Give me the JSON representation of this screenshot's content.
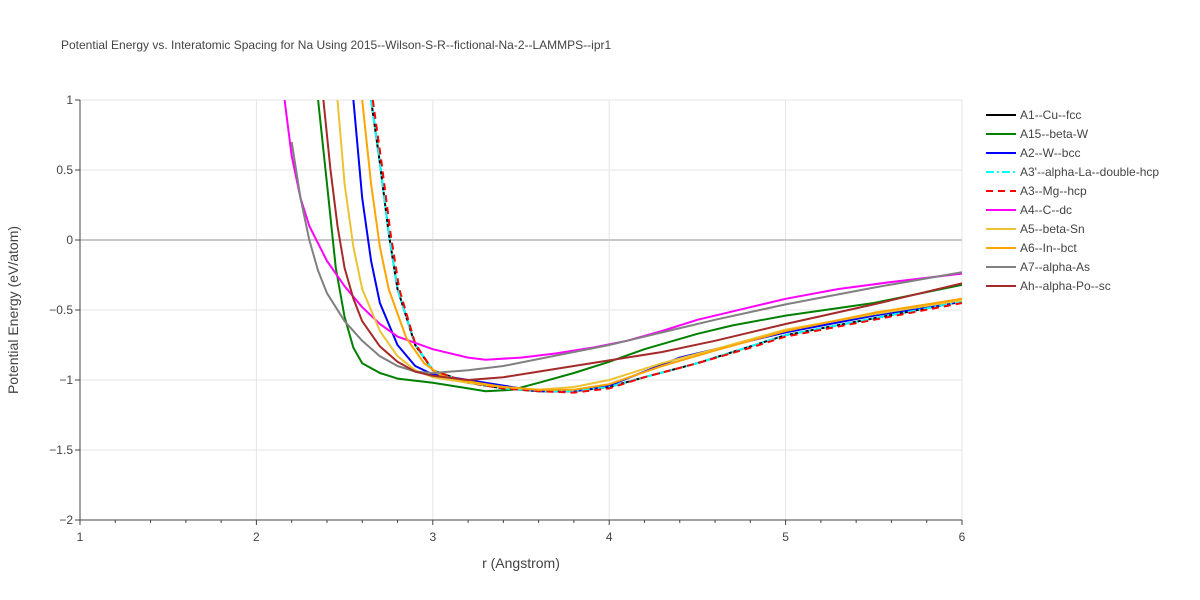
{
  "chart_data": {
    "type": "line",
    "title": "Potential Energy vs. Interatomic Spacing for Na Using 2015--Wilson-S-R--fictional-Na-2--LAMMPS--ipr1",
    "xlabel": "r (Angstrom)",
    "ylabel": "Potential Energy (eV/atom)",
    "xlim": [
      1,
      6
    ],
    "ylim": [
      -2,
      1
    ],
    "x_ticks": [
      "1",
      "2",
      "3",
      "4",
      "5",
      "6"
    ],
    "y_ticks": [
      "−2",
      "−1.5",
      "−1",
      "−0.5",
      "0",
      "0.5",
      "1"
    ],
    "grid": true,
    "legend_position": "right",
    "series": [
      {
        "name": "A1--Cu--fcc",
        "color": "#000000",
        "dash": "solid",
        "points": [
          [
            2.65,
            1.0
          ],
          [
            2.7,
            0.55
          ],
          [
            2.75,
            0.05
          ],
          [
            2.8,
            -0.35
          ],
          [
            2.9,
            -0.75
          ],
          [
            3.0,
            -0.93
          ],
          [
            3.2,
            -1.02
          ],
          [
            3.4,
            -1.06
          ],
          [
            3.6,
            -1.08
          ],
          [
            3.8,
            -1.08
          ],
          [
            4.0,
            -1.05
          ],
          [
            4.2,
            -0.98
          ],
          [
            4.5,
            -0.88
          ],
          [
            4.8,
            -0.76
          ],
          [
            5.0,
            -0.68
          ],
          [
            5.5,
            -0.56
          ],
          [
            6.0,
            -0.44
          ]
        ]
      },
      {
        "name": "A15--beta-W",
        "color": "#008000",
        "dash": "solid",
        "points": [
          [
            2.35,
            1.0
          ],
          [
            2.4,
            0.4
          ],
          [
            2.45,
            -0.2
          ],
          [
            2.5,
            -0.55
          ],
          [
            2.55,
            -0.77
          ],
          [
            2.6,
            -0.88
          ],
          [
            2.7,
            -0.95
          ],
          [
            2.8,
            -0.99
          ],
          [
            3.0,
            -1.02
          ],
          [
            3.2,
            -1.06
          ],
          [
            3.3,
            -1.08
          ],
          [
            3.45,
            -1.07
          ],
          [
            3.6,
            -1.02
          ],
          [
            3.8,
            -0.95
          ],
          [
            4.0,
            -0.87
          ],
          [
            4.2,
            -0.78
          ],
          [
            4.5,
            -0.67
          ],
          [
            4.7,
            -0.61
          ],
          [
            5.0,
            -0.54
          ],
          [
            5.5,
            -0.45
          ],
          [
            6.0,
            -0.32
          ]
        ]
      },
      {
        "name": "A2--W--bcc",
        "color": "#0000ff",
        "dash": "solid",
        "points": [
          [
            2.55,
            1.0
          ],
          [
            2.6,
            0.3
          ],
          [
            2.65,
            -0.15
          ],
          [
            2.7,
            -0.45
          ],
          [
            2.8,
            -0.75
          ],
          [
            2.9,
            -0.9
          ],
          [
            3.0,
            -0.96
          ],
          [
            3.2,
            -1.0
          ],
          [
            3.4,
            -1.04
          ],
          [
            3.6,
            -1.08
          ],
          [
            3.8,
            -1.08
          ],
          [
            4.0,
            -1.04
          ],
          [
            4.2,
            -0.94
          ],
          [
            4.4,
            -0.84
          ],
          [
            4.7,
            -0.75
          ],
          [
            5.0,
            -0.66
          ],
          [
            5.5,
            -0.54
          ],
          [
            6.0,
            -0.44
          ]
        ]
      },
      {
        "name": "A3'--alpha-La--double-hcp",
        "color": "#00ffff",
        "dash": "8,3,2,3",
        "points": [
          [
            2.65,
            1.0
          ],
          [
            2.7,
            0.55
          ],
          [
            2.75,
            0.05
          ],
          [
            2.8,
            -0.35
          ],
          [
            2.9,
            -0.75
          ],
          [
            3.0,
            -0.93
          ],
          [
            3.2,
            -1.02
          ],
          [
            3.4,
            -1.06
          ],
          [
            3.6,
            -1.08
          ],
          [
            3.8,
            -1.08
          ],
          [
            4.0,
            -1.05
          ],
          [
            4.2,
            -0.98
          ],
          [
            4.5,
            -0.88
          ],
          [
            4.8,
            -0.76
          ],
          [
            5.0,
            -0.68
          ],
          [
            5.5,
            -0.56
          ],
          [
            6.0,
            -0.44
          ]
        ]
      },
      {
        "name": "A3--Mg--hcp",
        "color": "#ff0000",
        "dash": "7,5",
        "points": [
          [
            2.66,
            1.0
          ],
          [
            2.71,
            0.55
          ],
          [
            2.76,
            0.05
          ],
          [
            2.81,
            -0.35
          ],
          [
            2.9,
            -0.74
          ],
          [
            3.0,
            -0.93
          ],
          [
            3.2,
            -1.02
          ],
          [
            3.4,
            -1.06
          ],
          [
            3.6,
            -1.08
          ],
          [
            3.8,
            -1.09
          ],
          [
            4.0,
            -1.06
          ],
          [
            4.2,
            -0.98
          ],
          [
            4.5,
            -0.88
          ],
          [
            4.8,
            -0.77
          ],
          [
            5.0,
            -0.69
          ],
          [
            5.5,
            -0.57
          ],
          [
            6.0,
            -0.45
          ]
        ]
      },
      {
        "name": "A4--C--dc",
        "color": "#ff00ff",
        "dash": "solid",
        "points": [
          [
            2.16,
            1.0
          ],
          [
            2.2,
            0.6
          ],
          [
            2.25,
            0.3
          ],
          [
            2.3,
            0.1
          ],
          [
            2.4,
            -0.15
          ],
          [
            2.5,
            -0.33
          ],
          [
            2.6,
            -0.48
          ],
          [
            2.7,
            -0.6
          ],
          [
            2.8,
            -0.69
          ],
          [
            3.0,
            -0.78
          ],
          [
            3.2,
            -0.84
          ],
          [
            3.3,
            -0.855
          ],
          [
            3.5,
            -0.84
          ],
          [
            3.7,
            -0.81
          ],
          [
            3.9,
            -0.77
          ],
          [
            4.1,
            -0.72
          ],
          [
            4.3,
            -0.65
          ],
          [
            4.5,
            -0.57
          ],
          [
            4.8,
            -0.48
          ],
          [
            5.0,
            -0.42
          ],
          [
            5.3,
            -0.35
          ],
          [
            5.6,
            -0.3
          ],
          [
            6.0,
            -0.24
          ]
        ]
      },
      {
        "name": "A5--beta-Sn",
        "color": "#ebc334",
        "dash": "solid",
        "points": [
          [
            2.46,
            1.0
          ],
          [
            2.5,
            0.4
          ],
          [
            2.55,
            -0.05
          ],
          [
            2.6,
            -0.35
          ],
          [
            2.7,
            -0.65
          ],
          [
            2.8,
            -0.83
          ],
          [
            2.9,
            -0.93
          ],
          [
            3.0,
            -0.98
          ],
          [
            3.2,
            -1.02
          ],
          [
            3.4,
            -1.05
          ],
          [
            3.6,
            -1.07
          ],
          [
            3.8,
            -1.05
          ],
          [
            4.0,
            -1.0
          ],
          [
            4.3,
            -0.88
          ],
          [
            4.6,
            -0.78
          ],
          [
            5.0,
            -0.64
          ],
          [
            5.5,
            -0.53
          ],
          [
            6.0,
            -0.43
          ]
        ]
      },
      {
        "name": "A6--In--bct",
        "color": "#ffa500",
        "dash": "solid",
        "points": [
          [
            2.6,
            1.0
          ],
          [
            2.65,
            0.4
          ],
          [
            2.7,
            -0.05
          ],
          [
            2.75,
            -0.35
          ],
          [
            2.85,
            -0.7
          ],
          [
            2.95,
            -0.88
          ],
          [
            3.05,
            -0.97
          ],
          [
            3.2,
            -1.01
          ],
          [
            3.4,
            -1.05
          ],
          [
            3.6,
            -1.07
          ],
          [
            3.8,
            -1.07
          ],
          [
            4.0,
            -1.03
          ],
          [
            4.3,
            -0.9
          ],
          [
            4.6,
            -0.79
          ],
          [
            5.0,
            -0.65
          ],
          [
            5.5,
            -0.52
          ],
          [
            6.0,
            -0.42
          ]
        ]
      },
      {
        "name": "A7--alpha-As",
        "color": "#808080",
        "dash": "solid",
        "points": [
          [
            2.2,
            0.7
          ],
          [
            2.25,
            0.3
          ],
          [
            2.3,
            0.0
          ],
          [
            2.35,
            -0.22
          ],
          [
            2.4,
            -0.38
          ],
          [
            2.5,
            -0.58
          ],
          [
            2.6,
            -0.72
          ],
          [
            2.7,
            -0.83
          ],
          [
            2.8,
            -0.9
          ],
          [
            2.9,
            -0.94
          ],
          [
            3.0,
            -0.95
          ],
          [
            3.2,
            -0.93
          ],
          [
            3.4,
            -0.9
          ],
          [
            3.6,
            -0.85
          ],
          [
            3.8,
            -0.8
          ],
          [
            4.0,
            -0.75
          ],
          [
            4.3,
            -0.66
          ],
          [
            4.6,
            -0.57
          ],
          [
            5.0,
            -0.46
          ],
          [
            5.5,
            -0.34
          ],
          [
            6.0,
            -0.23
          ]
        ]
      },
      {
        "name": "Ah--alpha-Po--sc",
        "color": "#a52a2a",
        "dash": "solid",
        "points": [
          [
            2.38,
            1.0
          ],
          [
            2.42,
            0.5
          ],
          [
            2.46,
            0.1
          ],
          [
            2.5,
            -0.2
          ],
          [
            2.55,
            -0.42
          ],
          [
            2.6,
            -0.58
          ],
          [
            2.7,
            -0.76
          ],
          [
            2.8,
            -0.87
          ],
          [
            2.9,
            -0.94
          ],
          [
            3.0,
            -0.97
          ],
          [
            3.2,
            -1.0
          ],
          [
            3.4,
            -0.98
          ],
          [
            3.6,
            -0.94
          ],
          [
            3.8,
            -0.9
          ],
          [
            4.0,
            -0.86
          ],
          [
            4.3,
            -0.8
          ],
          [
            4.6,
            -0.72
          ],
          [
            5.0,
            -0.6
          ],
          [
            5.5,
            -0.46
          ],
          [
            6.0,
            -0.31
          ]
        ]
      }
    ]
  }
}
